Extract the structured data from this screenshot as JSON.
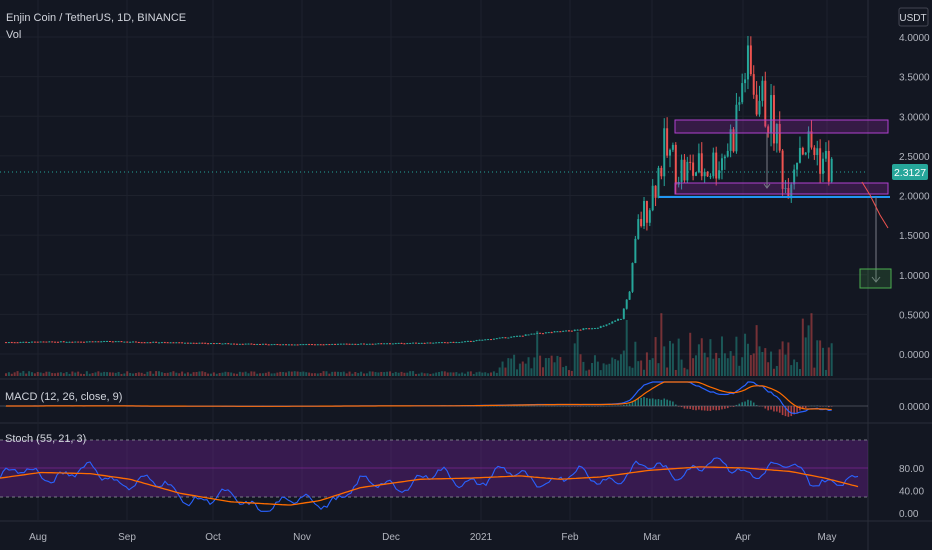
{
  "header": {
    "symbol_title": "Enjin Coin / TetherUS, 1D, BINANCE",
    "vol_label": "Vol",
    "currency_badge": "USDT"
  },
  "price_panel": {
    "last_price": "2.3127",
    "y_ticks": [
      "4.0000",
      "3.5000",
      "3.0000",
      "2.5000",
      "2.0000",
      "1.5000",
      "1.0000",
      "0.5000",
      "0.0000"
    ]
  },
  "macd_panel": {
    "label": "MACD (12, 26, close, 9)",
    "tick": "0.0000"
  },
  "stoch_panel": {
    "label": "Stoch (55, 21, 3)",
    "ticks": [
      "80.00",
      "40.00",
      "0.00"
    ]
  },
  "x_axis": {
    "labels": [
      "Aug",
      "Sep",
      "Oct",
      "Nov",
      "Dec",
      "2021",
      "Feb",
      "Mar",
      "Apr",
      "May"
    ]
  },
  "colors": {
    "background": "#131722",
    "up": "#26a69a",
    "down": "#ef5350",
    "support_line": "#2196f3",
    "zone": "#9c27b0",
    "target": "#4caf50",
    "macd": "#2962ff",
    "signal": "#ff6d00",
    "stoch_k": "#2962ff",
    "stoch_d": "#ff6d00"
  },
  "chart_data": {
    "type": "candlestick",
    "title": "Enjin Coin / TetherUS, 1D, BINANCE",
    "ylim": [
      0,
      4.0
    ],
    "x_labels": [
      "Aug",
      "Sep",
      "Oct",
      "Nov",
      "Dec",
      "2021",
      "Feb",
      "Mar",
      "Apr",
      "May"
    ],
    "price_path": [
      [
        "Jul 28",
        0.15
      ],
      [
        "Sep 1",
        0.16
      ],
      [
        "Oct 1",
        0.14
      ],
      [
        "Nov 1",
        0.12
      ],
      [
        "Dec 1",
        0.13
      ],
      [
        "Jan 1",
        0.15
      ],
      [
        "Jan 20",
        0.22
      ],
      [
        "Jan 28",
        0.26
      ],
      [
        "Feb 10",
        0.3
      ],
      [
        "Feb 20",
        0.35
      ],
      [
        "Feb 26",
        0.45
      ],
      [
        "Mar 1",
        0.8
      ],
      [
        "Mar 4",
        1.6
      ],
      [
        "Mar 8",
        1.95
      ],
      [
        "Mar 13",
        2.55
      ],
      [
        "Mar 20",
        2.3
      ],
      [
        "Mar 28",
        2.35
      ],
      [
        "Apr 2",
        2.5
      ],
      [
        "Apr 6",
        2.8
      ],
      [
        "Apr 10",
        3.6
      ],
      [
        "Apr 14",
        3.3
      ],
      [
        "Apr 20",
        2.9
      ],
      [
        "Apr 24",
        2.1
      ],
      [
        "Apr 29",
        2.7
      ],
      [
        "May 5",
        2.55
      ],
      [
        "May 10",
        2.31
      ]
    ],
    "resistance_zone": [
      2.8,
      2.96
    ],
    "support_zone": [
      2.08,
      2.18
    ],
    "neckline": 1.99,
    "target_zone": [
      0.82,
      1.05
    ],
    "projection": [
      2.31,
      1.6
    ],
    "macd": {
      "macd_range": "near 0.0000 until Mar, peaks in Mar–Apr",
      "zero": 0.0
    },
    "stoch": {
      "upper": 80,
      "lower": 20,
      "ylim": [
        0,
        100
      ]
    }
  }
}
